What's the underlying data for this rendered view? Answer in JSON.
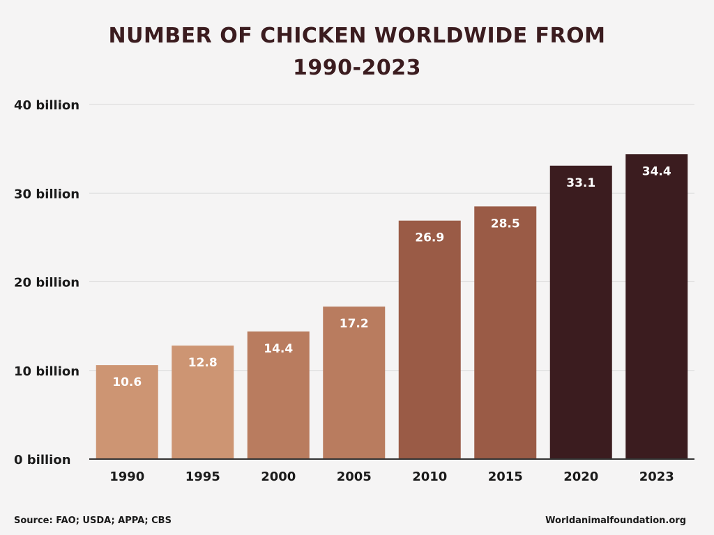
{
  "header": {
    "title_line1": "NUMBER OF CHICKEN WORLDWIDE FROM",
    "title_line2": "1990-2023"
  },
  "footer": {
    "source": "Source: FAO; USDA; APPA; CBS",
    "website": "Worldanimalfoundation.org"
  },
  "chart_data": {
    "type": "bar",
    "title": "NUMBER OF CHICKEN WORLDWIDE FROM 1990-2023",
    "xlabel": "",
    "ylabel": "",
    "categories": [
      "1990",
      "1995",
      "2000",
      "2005",
      "2010",
      "2015",
      "2020",
      "2023"
    ],
    "values": [
      10.6,
      12.8,
      14.4,
      17.2,
      26.9,
      28.5,
      33.1,
      34.4
    ],
    "data_labels": [
      "10.6",
      "12.8",
      "14.4",
      "17.2",
      "26.9",
      "28.5",
      "33.1",
      "34.4"
    ],
    "y_ticks": [
      0,
      10,
      20,
      30,
      40
    ],
    "y_tick_labels": [
      "0 billion",
      "10 billion",
      "20 billion",
      "30 billion",
      "40 billion"
    ],
    "ylim": [
      0,
      40
    ],
    "grid": true,
    "legend": "none",
    "bar_colors": [
      "#cd9573",
      "#cd9573",
      "#b97c5f",
      "#b97c5f",
      "#9a5b46",
      "#9a5b46",
      "#3b1c1f",
      "#3b1c1f"
    ],
    "label_color": "#ffffff",
    "grid_color": "#d9d9d9",
    "axis_color": "#333333"
  }
}
